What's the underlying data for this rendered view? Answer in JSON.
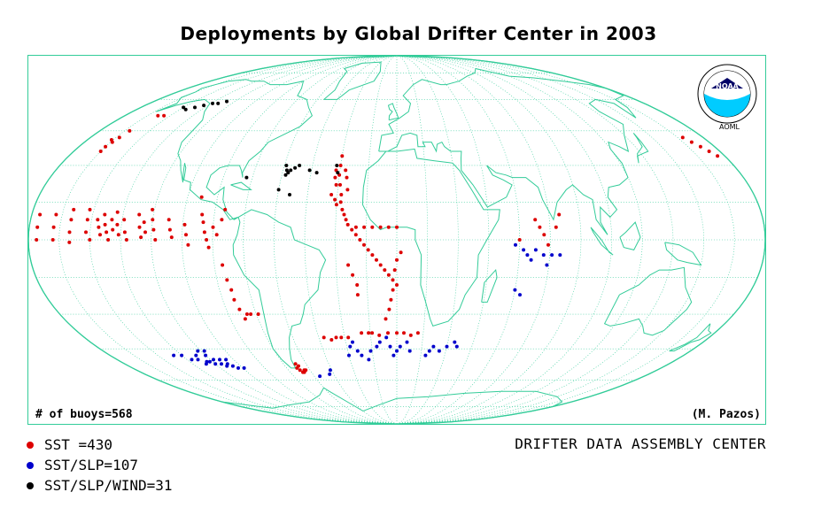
{
  "title": "Deployments by Global Drifter Center in 2003",
  "buoy_count_label": "# of buoys=568",
  "author": "(M. Pazos)",
  "center_name": "DRIFTER DATA ASSEMBLY CENTER",
  "logo": {
    "text": "NOAA",
    "sub": "AOML",
    "icon": "noaa-logo-icon"
  },
  "legend": [
    {
      "label": "SST =430",
      "color": "#dd0000"
    },
    {
      "label": "SST/SLP=107",
      "color": "#0000cc"
    },
    {
      "label": "SST/SLP/WIND=31",
      "color": "#000000"
    }
  ],
  "colors": {
    "frame": "#33cc99",
    "coast": "#33cc99",
    "grid": "#33cc99"
  },
  "map": {
    "projection": "mollweide",
    "grid": true,
    "deployments": {
      "SST": [
        [
          -176,
          10
        ],
        [
          -176,
          5
        ],
        [
          -176,
          0
        ],
        [
          -168,
          10
        ],
        [
          -168,
          5
        ],
        [
          -168,
          0
        ],
        [
          -160,
          12
        ],
        [
          -160,
          8
        ],
        [
          -160,
          3
        ],
        [
          -160,
          -1
        ],
        [
          -152,
          12
        ],
        [
          -152,
          8
        ],
        [
          -152,
          3
        ],
        [
          -150,
          0
        ],
        [
          -147,
          8
        ],
        [
          -146,
          5
        ],
        [
          -145,
          2
        ],
        [
          -144,
          10
        ],
        [
          -143,
          6
        ],
        [
          -142,
          3
        ],
        [
          -141,
          0
        ],
        [
          -140,
          8
        ],
        [
          -139,
          4
        ],
        [
          -138,
          11
        ],
        [
          -137,
          6
        ],
        [
          -136,
          2
        ],
        [
          -134,
          8
        ],
        [
          -133,
          3
        ],
        [
          -132,
          0
        ],
        [
          -127,
          10
        ],
        [
          -126,
          5
        ],
        [
          -125,
          1
        ],
        [
          -124,
          7
        ],
        [
          -123,
          3
        ],
        [
          -121,
          12
        ],
        [
          -120,
          8
        ],
        [
          -119,
          4
        ],
        [
          -118,
          0
        ],
        [
          -112,
          8
        ],
        [
          -111,
          4
        ],
        [
          -110,
          1
        ],
        [
          -104,
          6
        ],
        [
          -103,
          2
        ],
        [
          -102,
          -2
        ],
        [
          -98,
          17
        ],
        [
          -96,
          10
        ],
        [
          -95,
          7
        ],
        [
          -94,
          3
        ],
        [
          -93,
          0
        ],
        [
          -92,
          -3
        ],
        [
          -90,
          5
        ],
        [
          -88,
          2
        ],
        [
          -86,
          8
        ],
        [
          -85,
          12
        ],
        [
          -86,
          -10
        ],
        [
          -85,
          -16
        ],
        [
          -84,
          -20
        ],
        [
          -84,
          -24
        ],
        [
          -83,
          -28
        ],
        [
          -82,
          -32
        ],
        [
          -80,
          -30
        ],
        [
          -78,
          -30
        ],
        [
          -74,
          -30
        ],
        [
          -158,
          52
        ],
        [
          -154,
          52
        ],
        [
          -162,
          45
        ],
        [
          -163,
          42
        ],
        [
          -164,
          40
        ],
        [
          -165,
          38
        ],
        [
          -166,
          41
        ],
        [
          -165,
          36
        ],
        [
          168,
          42
        ],
        [
          170,
          40
        ],
        [
          172,
          38
        ],
        [
          174,
          36
        ],
        [
          176,
          34
        ],
        [
          -42,
          -40
        ],
        [
          -38,
          -41
        ],
        [
          -35,
          -40
        ],
        [
          -32,
          -40
        ],
        [
          -28,
          -40
        ],
        [
          -20,
          -38
        ],
        [
          -16,
          -38
        ],
        [
          -14,
          -38
        ],
        [
          -10,
          -39
        ],
        [
          -5,
          -38
        ],
        [
          0,
          -38
        ],
        [
          4,
          -38
        ],
        [
          8,
          -39
        ],
        [
          12,
          -38
        ],
        [
          -68,
          -54
        ],
        [
          -67,
          -55
        ],
        [
          -66,
          -56
        ],
        [
          -65,
          -56
        ],
        [
          -64,
          -55
        ],
        [
          -63,
          -55
        ],
        [
          -66,
          -53
        ],
        [
          -67,
          -52
        ],
        [
          -30,
          34
        ],
        [
          -30,
          30
        ],
        [
          -30,
          26
        ],
        [
          -29,
          22
        ],
        [
          -28,
          18
        ],
        [
          -28,
          15
        ],
        [
          -27,
          12
        ],
        [
          -26,
          10
        ],
        [
          -25,
          8
        ],
        [
          -24,
          6
        ],
        [
          -22,
          4
        ],
        [
          -20,
          2
        ],
        [
          -18,
          0
        ],
        [
          -16,
          -2
        ],
        [
          -14,
          -4
        ],
        [
          -12,
          -6
        ],
        [
          -10,
          -8
        ],
        [
          -8,
          -10
        ],
        [
          -6,
          -12
        ],
        [
          -4,
          -14
        ],
        [
          -2,
          -16
        ],
        [
          0,
          -18
        ],
        [
          0,
          5
        ],
        [
          -4,
          5
        ],
        [
          -8,
          5
        ],
        [
          -12,
          5
        ],
        [
          -16,
          5
        ],
        [
          -20,
          5
        ],
        [
          2,
          -5
        ],
        [
          0,
          -8
        ],
        [
          -1,
          -12
        ],
        [
          -2,
          -20
        ],
        [
          -3,
          -24
        ],
        [
          -4,
          -28
        ],
        [
          -6,
          -32
        ],
        [
          -24,
          -10
        ],
        [
          -22,
          -14
        ],
        [
          -20,
          -18
        ],
        [
          -20,
          -22
        ],
        [
          -32,
          28
        ],
        [
          -32,
          25
        ],
        [
          -31,
          22
        ],
        [
          -33,
          18
        ],
        [
          -31,
          16
        ],
        [
          -30,
          14
        ],
        [
          -27,
          28
        ],
        [
          -26,
          25
        ],
        [
          -25,
          20
        ],
        [
          68,
          8
        ],
        [
          70,
          5
        ],
        [
          72,
          2
        ],
        [
          74,
          -2
        ],
        [
          78,
          5
        ],
        [
          80,
          10
        ],
        [
          60,
          0
        ]
      ],
      "SLP": [
        [
          -140,
          -48
        ],
        [
          -135,
          -48
        ],
        [
          -132,
          -50
        ],
        [
          -128,
          -50
        ],
        [
          -126,
          -52
        ],
        [
          -124,
          -51
        ],
        [
          -122,
          -51
        ],
        [
          -120,
          -52
        ],
        [
          -118,
          -50
        ],
        [
          -116,
          -52
        ],
        [
          -114,
          -53
        ],
        [
          -112,
          -52
        ],
        [
          -110,
          -53
        ],
        [
          -108,
          -54
        ],
        [
          -120,
          -48
        ],
        [
          -122,
          -46
        ],
        [
          -126,
          -48
        ],
        [
          -118,
          -46
        ],
        [
          -114,
          -50
        ],
        [
          -110,
          -50
        ],
        [
          -104,
          -54
        ],
        [
          -56,
          -58
        ],
        [
          -48,
          -57
        ],
        [
          -46,
          -55
        ],
        [
          -30,
          -48
        ],
        [
          -28,
          -44
        ],
        [
          -26,
          -42
        ],
        [
          -24,
          -46
        ],
        [
          -22,
          -48
        ],
        [
          -18,
          -50
        ],
        [
          -16,
          -46
        ],
        [
          -12,
          -44
        ],
        [
          -10,
          -42
        ],
        [
          -6,
          -40
        ],
        [
          -4,
          -44
        ],
        [
          -2,
          -48
        ],
        [
          0,
          -46
        ],
        [
          2,
          -44
        ],
        [
          6,
          -42
        ],
        [
          8,
          -46
        ],
        [
          18,
          -48
        ],
        [
          20,
          -46
        ],
        [
          22,
          -44
        ],
        [
          26,
          -46
        ],
        [
          30,
          -44
        ],
        [
          34,
          -42
        ],
        [
          36,
          -44
        ],
        [
          58,
          -2
        ],
        [
          62,
          -4
        ],
        [
          64,
          -6
        ],
        [
          66,
          -8
        ],
        [
          68,
          -4
        ],
        [
          72,
          -6
        ],
        [
          74,
          -10
        ],
        [
          76,
          -6
        ],
        [
          80,
          -6
        ],
        [
          60,
          -20
        ],
        [
          63,
          -22
        ]
      ],
      "WIND": [
        [
          -150,
          56
        ],
        [
          -146,
          55
        ],
        [
          -142,
          56
        ],
        [
          -138,
          57
        ],
        [
          -134,
          58
        ],
        [
          -130,
          58
        ],
        [
          -126,
          59
        ],
        [
          -59,
          30
        ],
        [
          -58,
          28
        ],
        [
          -58,
          26
        ],
        [
          -57,
          27
        ],
        [
          -56,
          28
        ],
        [
          -54,
          29
        ],
        [
          -52,
          30
        ],
        [
          -46,
          28
        ],
        [
          -42,
          27
        ],
        [
          -60,
          20
        ],
        [
          -54,
          18
        ],
        [
          -78,
          25
        ],
        [
          -32,
          30
        ],
        [
          -31,
          27
        ]
      ]
    }
  }
}
